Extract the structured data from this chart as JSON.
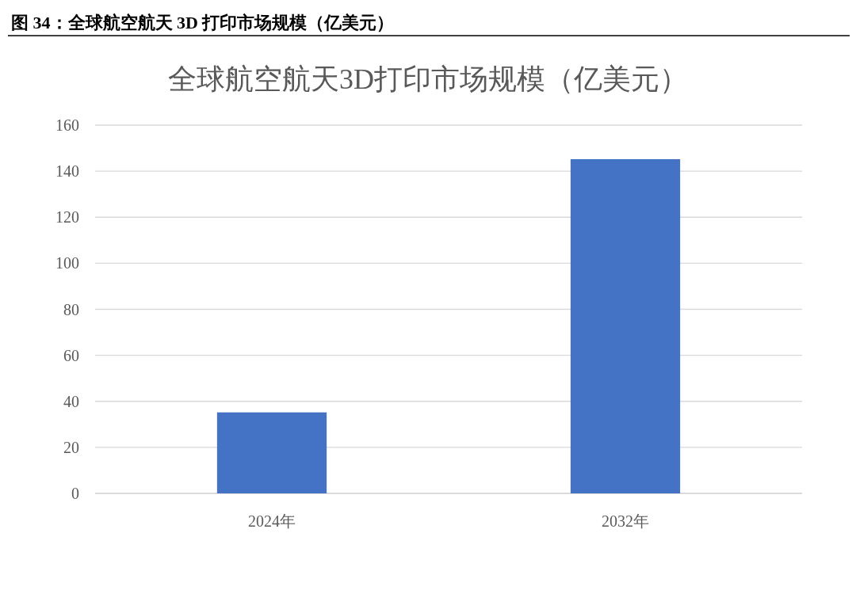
{
  "chart_data": {
    "type": "bar",
    "title": "图 34：全球航空航天 3D 打印市场规模（亿美元）",
    "subtitle": "全球航空航天3D打印市场规模（亿美元）",
    "categories": [
      "2024年",
      "2032年"
    ],
    "values": [
      35.2,
      145.2
    ],
    "color": "#4472c4",
    "ylim": [
      0,
      160
    ],
    "yticks": [
      0,
      20,
      40,
      60,
      80,
      100,
      120,
      140,
      160
    ],
    "grid": "y"
  }
}
